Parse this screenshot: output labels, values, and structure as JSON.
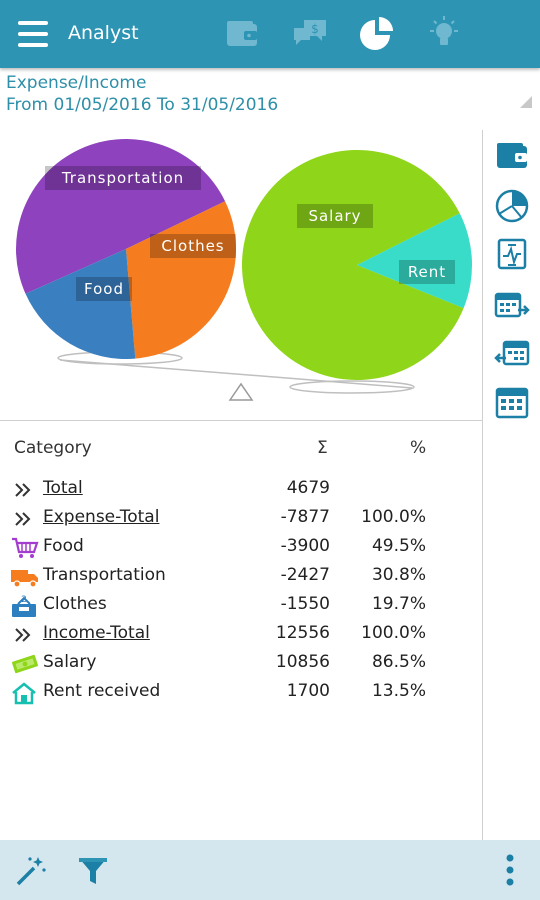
{
  "header": {
    "title": "Analyst",
    "tabs": [
      {
        "icon": "wallet-icon",
        "active": false
      },
      {
        "icon": "money-chat-icon",
        "active": false
      },
      {
        "icon": "pie-chart-icon",
        "active": true
      },
      {
        "icon": "lightbulb-icon",
        "active": false
      }
    ]
  },
  "report": {
    "title": "Expense/Income",
    "range": "From 01/05/2016 To 31/05/2016"
  },
  "chart_data": [
    {
      "type": "pie",
      "title": "",
      "slices": [
        {
          "label": "Food",
          "value": 3900,
          "color": "#8e42be"
        },
        {
          "label": "Transportation",
          "value": 2427,
          "color": "#f57c1f"
        },
        {
          "label": "Clothes",
          "value": 1550,
          "color": "#3a7fc0"
        }
      ]
    },
    {
      "type": "pie",
      "title": "",
      "slices": [
        {
          "label": "Salary",
          "value": 10856,
          "color": "#8fd519"
        },
        {
          "label": "Rent",
          "value": 1700,
          "color": "#38dcc8"
        }
      ]
    }
  ],
  "table": {
    "headers": {
      "category": "Category",
      "sum": "Σ",
      "pct": "%"
    },
    "rows": [
      {
        "name": "Total",
        "sum": "4679",
        "pct": "",
        "icon": "chevron-double-icon",
        "underline": true
      },
      {
        "name": "Expense-Total",
        "sum": "-7877",
        "pct": "100.0%",
        "icon": "chevron-double-icon",
        "underline": true
      },
      {
        "name": "Food",
        "sum": "-3900",
        "pct": "49.5%",
        "icon": "cart-icon",
        "underline": false
      },
      {
        "name": "Transportation",
        "sum": "-2427",
        "pct": "30.8%",
        "icon": "truck-icon",
        "underline": false
      },
      {
        "name": "Clothes",
        "sum": "-1550",
        "pct": "19.7%",
        "icon": "clothes-box-icon",
        "underline": false
      },
      {
        "name": "Income-Total",
        "sum": "12556",
        "pct": "100.0%",
        "icon": "chevron-double-icon",
        "underline": true
      },
      {
        "name": "Salary",
        "sum": "10856",
        "pct": "86.5%",
        "icon": "cash-icon",
        "underline": false
      },
      {
        "name": "Rent received",
        "sum": "1700",
        "pct": "13.5%",
        "icon": "house-icon",
        "underline": false
      }
    ]
  },
  "sidebar": {
    "icons": [
      "wallet-icon",
      "pie-chart-icon",
      "compare-icon",
      "calendar-forward-icon",
      "calendar-back-icon",
      "calendar-icon"
    ]
  },
  "footer": {
    "icons": [
      "magic-wand-icon",
      "filter-icon",
      "more-vert-icon"
    ]
  },
  "colors": {
    "primary": "#2e94b3",
    "footer_bg": "#d4e7ee",
    "subtitle": "#2e8fa8"
  }
}
